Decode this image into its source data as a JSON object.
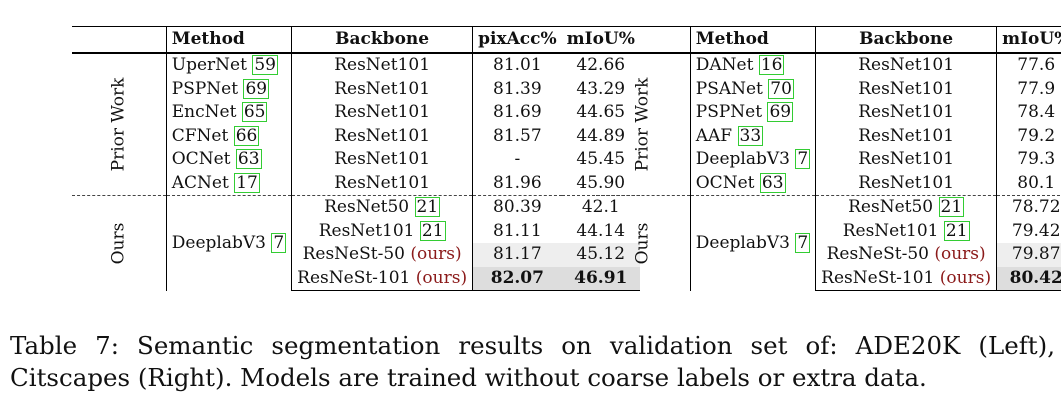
{
  "left_table": {
    "headers": {
      "method": "Method",
      "backbone": "Backbone",
      "pixacc": "pixAcc%",
      "miou": "mIoU%"
    },
    "prior_label": "Prior Work",
    "ours_label": "Ours",
    "prior_rows": [
      {
        "method": "UperNet",
        "cite": "59",
        "backbone": "ResNet101",
        "pixacc": "81.01",
        "miou": "42.66"
      },
      {
        "method": "PSPNet",
        "cite": "69",
        "backbone": "ResNet101",
        "pixacc": "81.39",
        "miou": "43.29"
      },
      {
        "method": "EncNet",
        "cite": "65",
        "backbone": "ResNet101",
        "pixacc": "81.69",
        "miou": "44.65"
      },
      {
        "method": "CFNet",
        "cite": "66",
        "backbone": "ResNet101",
        "pixacc": "81.57",
        "miou": "44.89"
      },
      {
        "method": "OCNet",
        "cite": "63",
        "backbone": "ResNet101",
        "pixacc": "-",
        "miou": "45.45"
      },
      {
        "method": "ACNet",
        "cite": "17",
        "backbone": "ResNet101",
        "pixacc": "81.96",
        "miou": "45.90"
      }
    ],
    "ours_method": "DeeplabV3",
    "ours_method_cite": "7",
    "ours_rows": [
      {
        "backbone": "ResNet50",
        "cite": "21",
        "own": "",
        "pixacc": "80.39",
        "miou": "42.1"
      },
      {
        "backbone": "ResNet101",
        "cite": "21",
        "own": "",
        "pixacc": "81.11",
        "miou": "44.14"
      },
      {
        "backbone": "ResNeSt-50",
        "cite": "",
        "own": "(ours)",
        "pixacc": "81.17",
        "miou": "45.12"
      },
      {
        "backbone": "ResNeSt-101",
        "cite": "",
        "own": "(ours)",
        "pixacc": "82.07",
        "miou": "46.91"
      }
    ]
  },
  "right_table": {
    "headers": {
      "method": "Method",
      "backbone": "Backbone",
      "miou": "mIoU%"
    },
    "prior_label": "Prior Work",
    "ours_label": "Ours",
    "prior_rows": [
      {
        "method": "DANet",
        "cite": "16",
        "backbone": "ResNet101",
        "miou": "77.6"
      },
      {
        "method": "PSANet",
        "cite": "70",
        "backbone": "ResNet101",
        "miou": "77.9"
      },
      {
        "method": "PSPNet",
        "cite": "69",
        "backbone": "ResNet101",
        "miou": "78.4"
      },
      {
        "method": "AAF",
        "cite": "33",
        "backbone": "ResNet101",
        "miou": "79.2"
      },
      {
        "method": "DeeplabV3",
        "cite": "7",
        "backbone": "ResNet101",
        "miou": "79.3"
      },
      {
        "method": "OCNet",
        "cite": "63",
        "backbone": "ResNet101",
        "miou": "80.1"
      }
    ],
    "ours_method": "DeeplabV3",
    "ours_method_cite": "7",
    "ours_rows": [
      {
        "backbone": "ResNet50",
        "cite": "21",
        "own": "",
        "miou": "78.72"
      },
      {
        "backbone": "ResNet101",
        "cite": "21",
        "own": "",
        "miou": "79.42"
      },
      {
        "backbone": "ResNeSt-50",
        "cite": "",
        "own": "(ours)",
        "miou": "79.87"
      },
      {
        "backbone": "ResNeSt-101",
        "cite": "",
        "own": "(ours)",
        "miou": "80.42"
      }
    ]
  },
  "caption": {
    "line1": "Table 7: Semantic segmentation results on validation set of: ADE20K (Left),",
    "line2": "Citscapes (Right). Models are trained without coarse labels or extra data."
  }
}
